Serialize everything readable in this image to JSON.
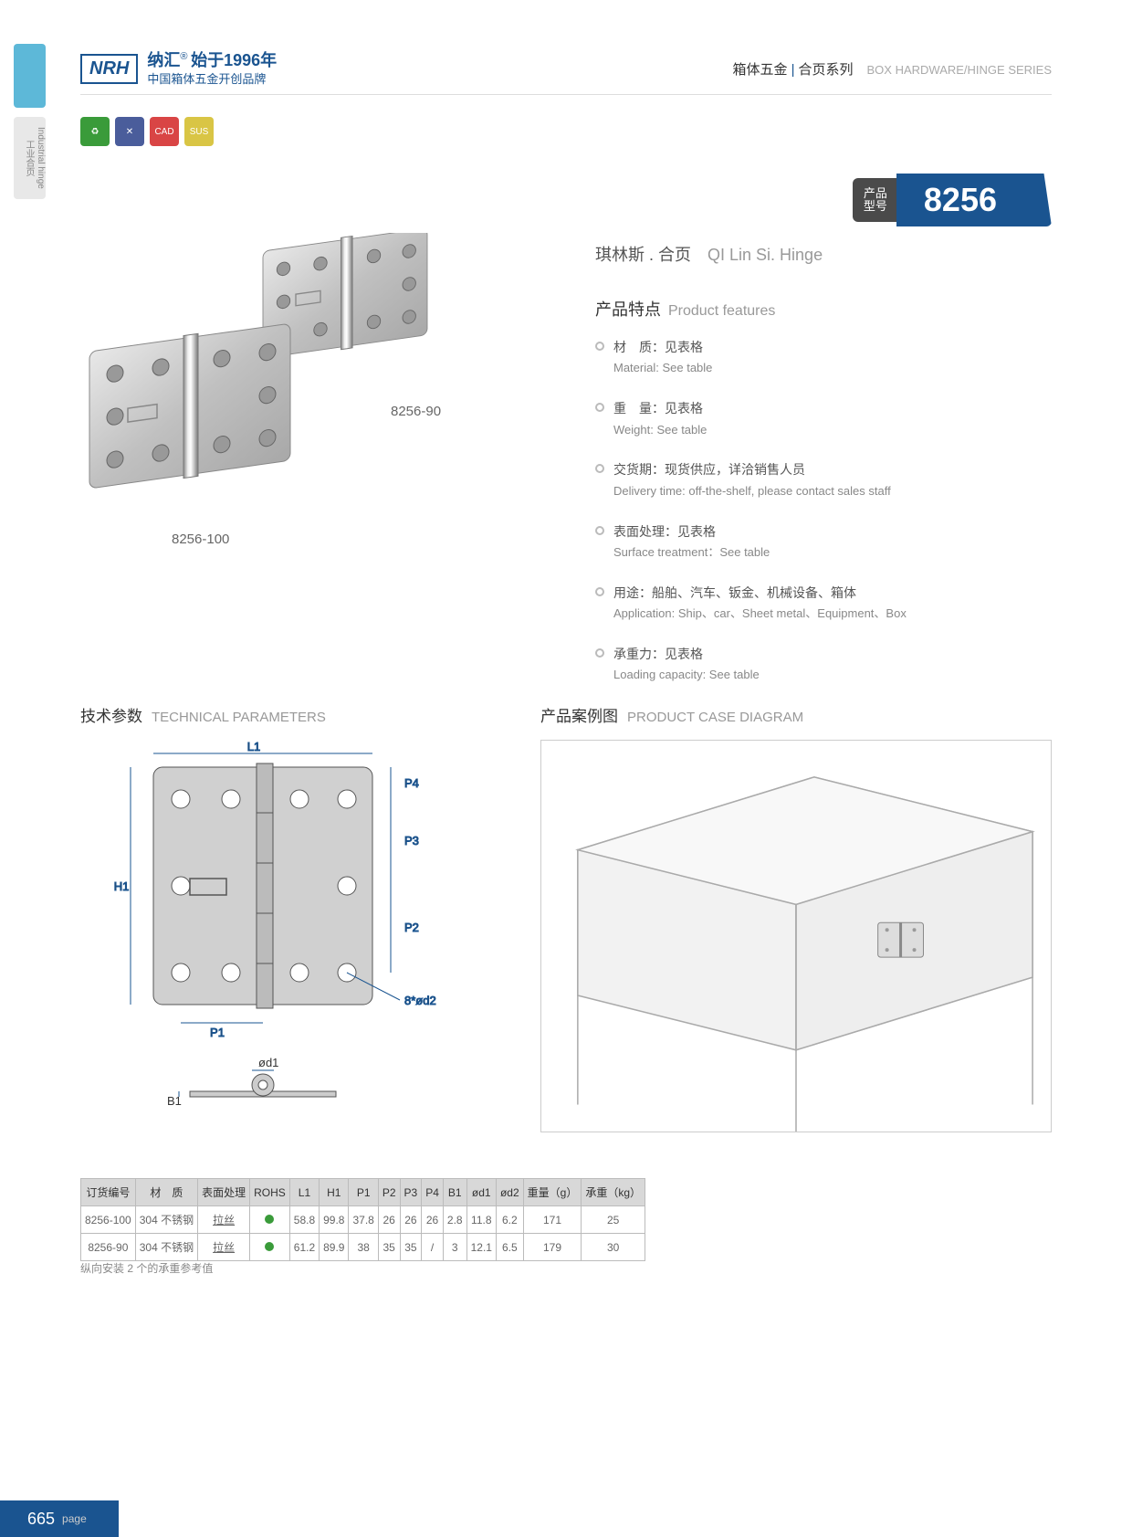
{
  "header": {
    "logo": "NRH",
    "brand_cn": "纳汇",
    "tagline_cn": "始于1996年",
    "subtitle_cn": "中国箱体五金开创品牌",
    "category_cn": "箱体五金",
    "series_cn": "合页系列",
    "category_en": "BOX HARDWARE/HINGE SERIES"
  },
  "sidebar": {
    "tab2_cn": "工业合页",
    "tab2_en": "Industrial hinge"
  },
  "icons": [
    {
      "bg": "#3a9b3a",
      "label": "♻"
    },
    {
      "bg": "#4a5d9b",
      "label": "✕"
    },
    {
      "bg": "#d94545",
      "label": "CAD"
    },
    {
      "bg": "#d9c545",
      "label": "SUS"
    }
  ],
  "product": {
    "badge_label": "产品\n型号",
    "model": "8256",
    "name_cn": "琪林斯 . 合页",
    "name_en": "QI Lin Si. Hinge",
    "image_labels": [
      "8256-90",
      "8256-100"
    ]
  },
  "features": {
    "title_cn": "产品特点",
    "title_en": "Product features",
    "items": [
      {
        "cn": "材　质：见表格",
        "en": "Material: See table"
      },
      {
        "cn": "重　量：见表格",
        "en": "Weight: See table"
      },
      {
        "cn": "交货期：现货供应，详洽销售人员",
        "en": "Delivery time: off-the-shelf, please contact sales staff"
      },
      {
        "cn": "表面处理：见表格",
        "en": "Surface treatment：See table"
      },
      {
        "cn": "用途：船舶、汽车、钣金、机械设备、箱体",
        "en": "Application: Ship、car、Sheet metal、Equipment、Box"
      },
      {
        "cn": "承重力：见表格",
        "en": "Loading capacity: See table"
      }
    ]
  },
  "tech": {
    "title_cn": "技术参数",
    "title_en": "TECHNICAL PARAMETERS",
    "case_title_cn": "产品案例图",
    "case_title_en": "PRODUCT CASE DIAGRAM",
    "dims": {
      "L1": "L1",
      "H1": "H1",
      "P1": "P1",
      "P2": "P2",
      "P3": "P3",
      "P4": "P4",
      "B1": "B1",
      "od1": "ød1",
      "holes": "8*ød2"
    }
  },
  "table": {
    "columns": [
      "订货编号",
      "材　质",
      "表面处理",
      "ROHS",
      "L1",
      "H1",
      "P1",
      "P2",
      "P3",
      "P4",
      "B1",
      "ød1",
      "ød2",
      "重量（g）",
      "承重（kg）"
    ],
    "rows": [
      [
        "8256-100",
        "304 不锈钢",
        "拉丝",
        "●",
        "58.8",
        "99.8",
        "37.8",
        "26",
        "26",
        "26",
        "2.8",
        "11.8",
        "6.2",
        "171",
        "25"
      ],
      [
        "8256-90",
        "304 不锈钢",
        "拉丝",
        "●",
        "61.2",
        "89.9",
        "38",
        "35",
        "35",
        "/",
        "3",
        "12.1",
        "6.5",
        "179",
        "30"
      ]
    ],
    "note": "纵向安装 2 个的承重参考值"
  },
  "page": {
    "number": "665",
    "label": "page"
  },
  "colors": {
    "primary": "#1a5490",
    "accent": "#5db8d8",
    "gray": "#d8d8d8"
  }
}
